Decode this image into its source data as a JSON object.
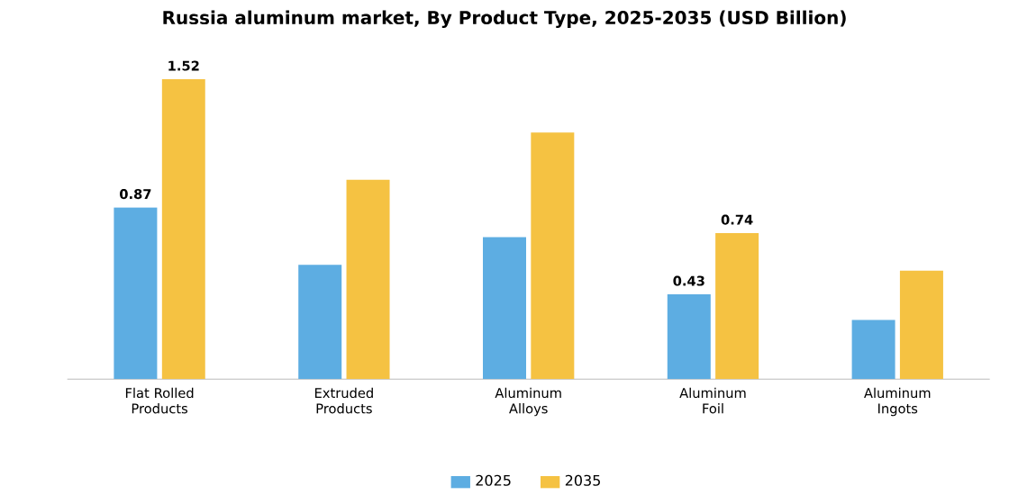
{
  "chart_data": {
    "type": "bar",
    "title": "Russia aluminum market, By Product Type, 2025-2035 (USD Billion)",
    "categories": [
      "Flat Rolled Products",
      "Extruded Products",
      "Aluminum Alloys",
      "Aluminum Foil",
      "Aluminum Ingots"
    ],
    "series": [
      {
        "name": "2025",
        "color": "#5dade2",
        "values": [
          0.87,
          0.58,
          0.72,
          0.43,
          0.3
        ],
        "value_labels": [
          "0.87",
          null,
          null,
          "0.43",
          null
        ]
      },
      {
        "name": "2035",
        "color": "#f5c242",
        "values": [
          1.52,
          1.01,
          1.25,
          0.74,
          0.55
        ],
        "value_labels": [
          "1.52",
          null,
          null,
          "0.74",
          null
        ]
      }
    ],
    "tick_labels": "x",
    "legend": "bottom"
  }
}
